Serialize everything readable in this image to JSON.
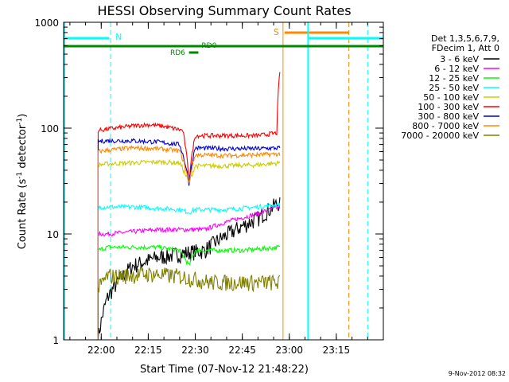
{
  "chart_data": {
    "type": "line",
    "title": "HESSI Observing Summary Count Rates",
    "xlabel": "Start Time (07-Nov-12 21:48:22)",
    "ylabel_main": "Count Rate (s",
    "ylabel_sup1": "-1",
    "ylabel_mid": " detector",
    "ylabel_sup2": "-1",
    "ylabel_end": ")",
    "y_scale": "log",
    "ylim": [
      1,
      1000
    ],
    "xlim": [
      "21:48",
      "23:30"
    ],
    "x_ticks": [
      "22:00",
      "22:15",
      "22:30",
      "22:45",
      "23:00",
      "23:15"
    ],
    "y_ticks": [
      "1",
      "10",
      "100",
      "1000"
    ],
    "legend_header": [
      "Det 1,3,5,6,7,9,",
      "FDecim 1, Att 0"
    ],
    "legend_position": "right",
    "date_stamp": "9-Nov-2012 08:32",
    "series": [
      {
        "name": "3 - 6 keV",
        "color": "#000000",
        "x": [
          "21:59",
          "22:02",
          "22:10",
          "22:18",
          "22:25",
          "22:33",
          "22:38",
          "22:43",
          "22:50",
          "22:57"
        ],
        "values": [
          1,
          2.5,
          5,
          6,
          6.5,
          7,
          9,
          11,
          14,
          20
        ]
      },
      {
        "name": "6 - 12 keV",
        "color": "#ff00ff",
        "x": [
          "21:59",
          "22:02",
          "22:10",
          "22:18",
          "22:25",
          "22:33",
          "22:40",
          "22:48",
          "22:57"
        ],
        "values": [
          10,
          10,
          10.5,
          11,
          11,
          11,
          13,
          15,
          18
        ]
      },
      {
        "name": "12 - 25 keV",
        "color": "#00ff00",
        "x": [
          "21:59",
          "22:02",
          "22:10",
          "22:18",
          "22:25",
          "22:28",
          "22:30",
          "22:35",
          "22:45",
          "22:57"
        ],
        "values": [
          7,
          7.5,
          7.5,
          7.5,
          7,
          5,
          7,
          7,
          7,
          7.5
        ]
      },
      {
        "name": "25 - 50 keV",
        "color": "#00ffff",
        "x": [
          "21:59",
          "22:02",
          "22:10",
          "22:18",
          "22:25",
          "22:28",
          "22:30",
          "22:40",
          "22:50",
          "22:57"
        ],
        "values": [
          18,
          18,
          18,
          17.5,
          17,
          16,
          17,
          17,
          18,
          19
        ]
      },
      {
        "name": "50 - 100 keV",
        "color": "#cccc00",
        "x": [
          "21:59",
          "22:02",
          "22:10",
          "22:18",
          "22:25",
          "22:28",
          "22:30",
          "22:40",
          "22:50",
          "22:57"
        ],
        "values": [
          45,
          46,
          47,
          48,
          47,
          30,
          44,
          44,
          45,
          47
        ]
      },
      {
        "name": "100 - 300 keV",
        "color": "#ff0000",
        "x": [
          "21:59",
          "22:02",
          "22:10",
          "22:15",
          "22:20",
          "22:26",
          "22:28",
          "22:30",
          "22:40",
          "22:50",
          "22:56",
          "22:57"
        ],
        "values": [
          95,
          98,
          105,
          108,
          104,
          95,
          30,
          85,
          85,
          85,
          90,
          350
        ]
      },
      {
        "name": "300 - 800 keV",
        "color": "#0000cc",
        "x": [
          "21:59",
          "22:02",
          "22:10",
          "22:18",
          "22:25",
          "22:28",
          "22:30",
          "22:40",
          "22:50",
          "22:57"
        ],
        "values": [
          75,
          76,
          76,
          74,
          70,
          30,
          65,
          64,
          64,
          65
        ]
      },
      {
        "name": "800 - 7000 keV",
        "color": "#ff8800",
        "x": [
          "21:59",
          "22:02",
          "22:10",
          "22:18",
          "22:25",
          "22:28",
          "22:30",
          "22:40",
          "22:50",
          "22:57"
        ],
        "values": [
          60,
          62,
          65,
          64,
          61,
          30,
          56,
          55,
          56,
          57
        ]
      },
      {
        "name": "7000 - 20000 keV",
        "color": "#808000",
        "x": [
          "21:59",
          "22:02",
          "22:05",
          "22:15",
          "22:25",
          "22:35",
          "22:45",
          "22:57"
        ],
        "values": [
          3,
          4,
          4,
          4.2,
          4,
          3.5,
          3.5,
          3.5
        ]
      }
    ],
    "annotations": {
      "night_marker": {
        "label": "N",
        "color": "#00ffff",
        "x": "22:03"
      },
      "saa_marker": {
        "label": "S",
        "color": "#ff8800",
        "x": "22:58"
      },
      "rd0_label": "RD0",
      "rd6_label": "RD6",
      "attenuator_color": "#008800"
    }
  }
}
